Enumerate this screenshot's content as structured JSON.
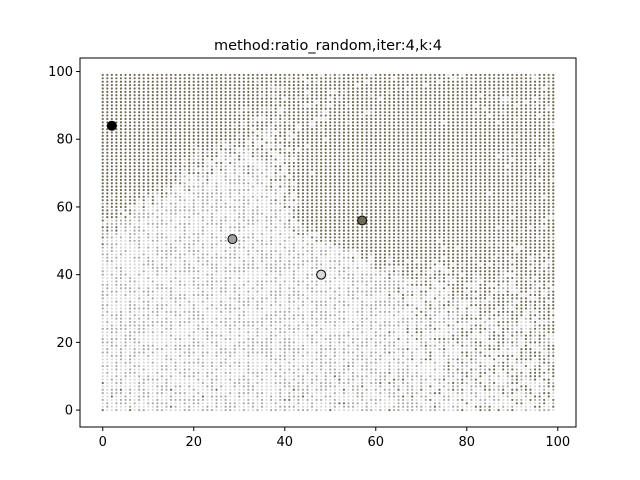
{
  "chart_data": {
    "type": "scatter",
    "title": "method:ratio_random,iter:4,k:4",
    "xlabel": "",
    "ylabel": "",
    "xlim": [
      -5,
      104
    ],
    "ylim": [
      -5,
      104
    ],
    "xticks": [
      0,
      20,
      40,
      60,
      80,
      100
    ],
    "yticks": [
      0,
      20,
      40,
      60,
      80,
      100
    ],
    "xtick_labels": [
      "0",
      "20",
      "40",
      "60",
      "80",
      "100"
    ],
    "ytick_labels": [
      "0",
      "20",
      "40",
      "60",
      "80",
      "100"
    ],
    "grid": false,
    "legend": "none",
    "background_grid": {
      "x_range": [
        0,
        99
      ],
      "y_range": [
        0,
        99
      ],
      "step": 1,
      "colors": {
        "cluster_dark": "#6e6a55",
        "cluster_light": "#d9d9d9",
        "cluster_mid": "#a8a8a8"
      }
    },
    "centroids": [
      {
        "x": 2,
        "y": 84,
        "color": "#000000"
      },
      {
        "x": 28.5,
        "y": 50.5,
        "color": "#a0a0a0"
      },
      {
        "x": 57,
        "y": 56,
        "color": "#6e6a55"
      },
      {
        "x": 48,
        "y": 40,
        "color": "#d9d9d9"
      }
    ]
  }
}
